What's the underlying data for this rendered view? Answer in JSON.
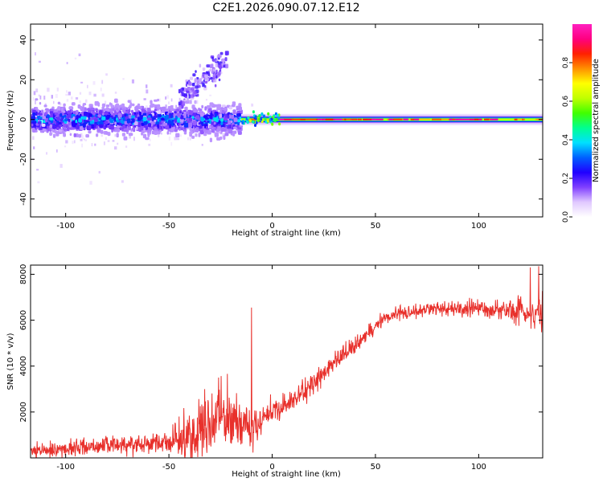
{
  "page_title": "C2E1.2026.090.07.12.E12",
  "colors": {
    "snr_line": "#e8302b",
    "axis": "#000000",
    "colormap": [
      "#ffffff",
      "#e0c8ff",
      "#8040ff",
      "#2000ff",
      "#0060ff",
      "#00e0ff",
      "#00ff90",
      "#40ff00",
      "#c0ff00",
      "#ffff00",
      "#ff9000",
      "#ff2000",
      "#ff0080",
      "#ff20c0"
    ]
  },
  "chart_data": [
    {
      "type": "heatmap",
      "title": "C2E1.2026.090.07.12.E12",
      "xlabel": "Height of straight line (km)",
      "ylabel": "Frequency (Hz)",
      "xlim": [
        -117,
        131
      ],
      "ylim": [
        -49,
        48
      ],
      "x_ticks": [
        -100,
        -50,
        0,
        50,
        100
      ],
      "x_tick_labels": [
        "-100",
        "-50",
        "0",
        "50",
        "100"
      ],
      "y_ticks": [
        -40,
        -20,
        0,
        20,
        40
      ],
      "y_tick_labels": [
        "-40",
        "-20",
        "0",
        "20",
        "40"
      ],
      "colorbar": {
        "label": "Normalized spectral amplitude",
        "range": [
          0.0,
          1.0
        ],
        "ticks": [
          0.0,
          0.2,
          0.4,
          0.6,
          0.8
        ],
        "tick_labels": [
          "0.0",
          "0.2",
          "0.4",
          "0.6",
          "0.8"
        ]
      },
      "description_series": [
        {
          "name": "noisy low-altitude band",
          "x_range": [
            -117,
            -15
          ],
          "freq_center": 0,
          "freq_spread": 6,
          "amplitude": 0.35
        },
        {
          "name": "ascending tail",
          "x_range": [
            -45,
            -22
          ],
          "freq_start": 10,
          "freq_end": 30,
          "amplitude": 0.15
        },
        {
          "name": "strong carrier line",
          "x_range": [
            -15,
            131
          ],
          "freq_center": 0,
          "freq_spread": 1,
          "amplitude": 0.85
        }
      ]
    },
    {
      "type": "line",
      "xlabel": "Height of straight line (km)",
      "ylabel": "SNR (10 * v/v)",
      "xlim": [
        -117,
        131
      ],
      "ylim": [
        0,
        8400
      ],
      "x_ticks": [
        -100,
        -50,
        0,
        50,
        100
      ],
      "x_tick_labels": [
        "-100",
        "-50",
        "0",
        "50",
        "100"
      ],
      "y_ticks": [
        2000,
        4000,
        6000,
        8000
      ],
      "y_tick_labels": [
        "2000",
        "4000",
        "6000",
        "8000"
      ],
      "series": [
        {
          "name": "SNR",
          "x": [
            -117,
            -100,
            -90,
            -80,
            -70,
            -60,
            -50,
            -40,
            -35,
            -30,
            -25,
            -20,
            -15,
            -10,
            -5,
            0,
            5,
            10,
            15,
            20,
            25,
            30,
            35,
            40,
            45,
            50,
            55,
            60,
            70,
            80,
            90,
            100,
            110,
            120,
            131
          ],
          "values": [
            250,
            400,
            500,
            550,
            600,
            650,
            700,
            900,
            1200,
            1500,
            1800,
            1700,
            1600,
            1200,
            1700,
            2000,
            2200,
            2500,
            2800,
            3300,
            3700,
            4100,
            4500,
            4900,
            5300,
            5800,
            6100,
            6300,
            6400,
            6500,
            6500,
            6500,
            6450,
            6400,
            6300
          ],
          "noise_amplitude": [
            300,
            350,
            400,
            350,
            400,
            400,
            500,
            1200,
            1500,
            1600,
            1500,
            1500,
            900,
            900,
            700,
            600,
            500,
            500,
            500,
            500,
            450,
            450,
            450,
            400,
            350,
            350,
            300,
            300,
            300,
            300,
            350,
            400,
            450,
            600,
            800
          ]
        }
      ],
      "spikes": [
        {
          "x": -26,
          "value": 3500
        },
        {
          "x": -10,
          "value": 6550
        },
        {
          "x": 125,
          "value": 8300
        },
        {
          "x": 129,
          "value": 8350
        }
      ]
    }
  ]
}
